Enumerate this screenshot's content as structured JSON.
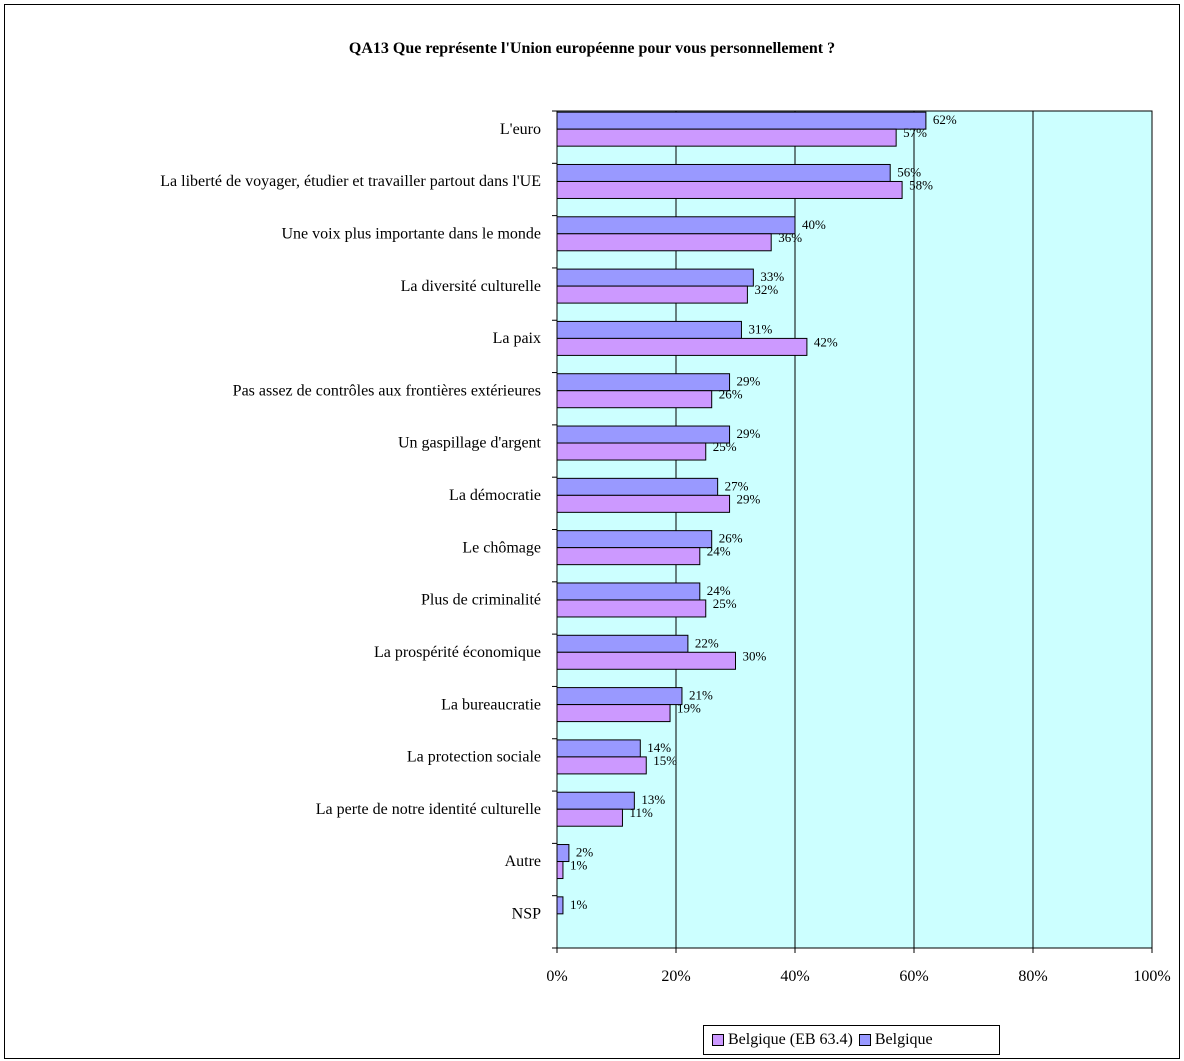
{
  "chart_data": {
    "type": "bar",
    "orientation": "horizontal",
    "title": "QA13 Que représente l'Union européenne pour vous personnellement ?",
    "categories": [
      "L'euro",
      "La liberté de voyager, étudier et travailler partout dans l'UE",
      "Une voix plus importante dans le monde",
      "La diversité culturelle",
      "La paix",
      "Pas assez de contrôles aux frontières extérieures",
      "Un gaspillage d'argent",
      "La démocratie",
      "Le chômage",
      "Plus de criminalité",
      "La prospérité économique",
      "La bureaucratie",
      "La protection sociale",
      "La perte de notre identité culturelle",
      "Autre",
      "NSP"
    ],
    "series": [
      {
        "name": "Belgique",
        "color": "#9999ff",
        "values": [
          62,
          56,
          40,
          33,
          31,
          29,
          29,
          27,
          26,
          24,
          22,
          21,
          14,
          13,
          2,
          1
        ],
        "labels": [
          "62%",
          "56%",
          "40%",
          "33%",
          "31%",
          "29%",
          "29%",
          "27%",
          "26%",
          "24%",
          "22%",
          "21%",
          "14%",
          "13%",
          "2%",
          "1%"
        ]
      },
      {
        "name": "Belgique (EB 63.4)",
        "color": "#cc99ff",
        "values": [
          57,
          58,
          36,
          32,
          42,
          26,
          25,
          29,
          24,
          25,
          30,
          19,
          15,
          11,
          1,
          null
        ],
        "labels": [
          "57%",
          "58%",
          "36%",
          "32%",
          "42%",
          "26%",
          "25%",
          "29%",
          "24%",
          "25%",
          "30%",
          "19%",
          "15%",
          "11%",
          "1%",
          ""
        ]
      }
    ],
    "xlim": [
      0,
      100
    ],
    "xticks": [
      "0%",
      "20%",
      "40%",
      "60%",
      "80%",
      "100%"
    ],
    "grid": true,
    "plot_background": "#ccffff",
    "legend_position": "bottom",
    "legend": [
      "Belgique (EB 63.4)",
      "Belgique"
    ]
  }
}
